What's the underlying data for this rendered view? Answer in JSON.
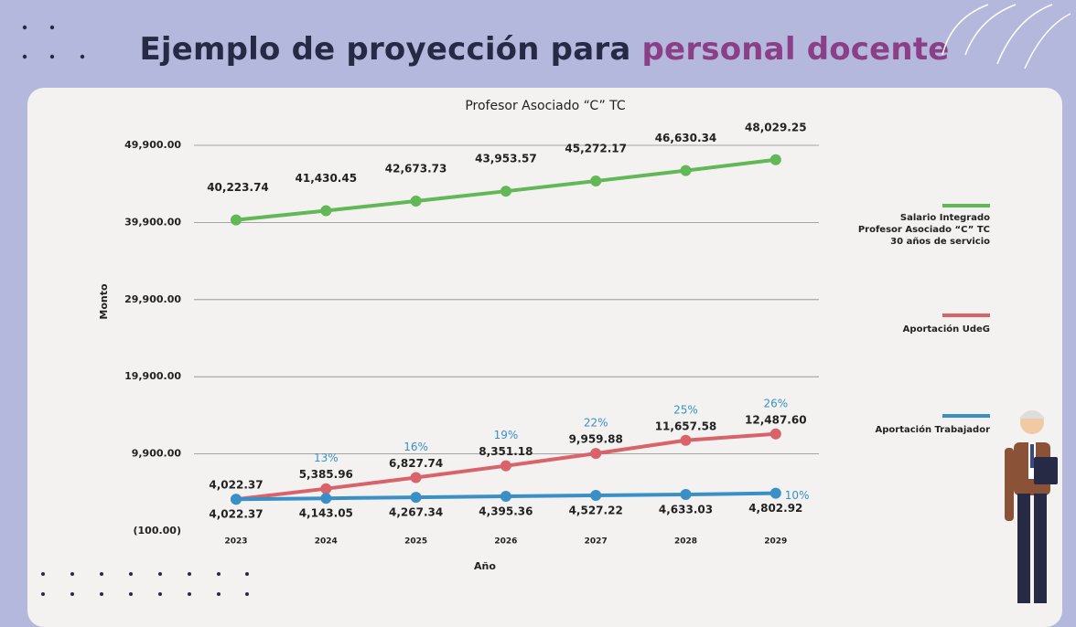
{
  "header": {
    "title": "Ejemplo de proyección para",
    "title_highlight": "personal docente"
  },
  "chart_data": {
    "type": "line",
    "title": "Profesor Asociado “C” TC",
    "x_label": "Año",
    "y_label": "Monto",
    "categories": [
      "2023",
      "2024",
      "2025",
      "2026",
      "2027",
      "2028",
      "2029"
    ],
    "ylim": [
      -100,
      49900
    ],
    "yticks": [
      {
        "value": -100,
        "label": "(100.00)"
      },
      {
        "value": 9900,
        "label": "9,900.00"
      },
      {
        "value": 19900,
        "label": "19,900.00"
      },
      {
        "value": 29900,
        "label": "29,900.00"
      },
      {
        "value": 39900,
        "label": "39,900.00"
      },
      {
        "value": 49900,
        "label": "49,900.00"
      }
    ],
    "grid": true,
    "series": [
      {
        "name": "Salario Integrado\nProfesor Asociado “C” TC\n30 años de servicio",
        "color": "#62b757",
        "values": [
          40223.74,
          41430.45,
          42673.73,
          43953.57,
          45272.17,
          46630.34,
          48029.25
        ],
        "value_labels": [
          "40,223.74",
          "41,430.45",
          "42,673.73",
          "43,953.57",
          "45,272.17",
          "46,630.34",
          "48,029.25"
        ]
      },
      {
        "name": "Aportación UdeG",
        "color": "#d8636a",
        "values": [
          4022.37,
          5385.96,
          6827.74,
          8351.18,
          9959.88,
          11657.58,
          12487.6
        ],
        "value_labels": [
          "4,022.37",
          "5,385.96",
          "6,827.74",
          "8,351.18",
          "9,959.88",
          "11,657.58",
          "12,487.60"
        ],
        "percent_labels": [
          null,
          "13%",
          "16%",
          "19%",
          "22%",
          "25%",
          "26%"
        ]
      },
      {
        "name": "Aportación Trabajador",
        "color": "#3a8fc6",
        "values": [
          4022.37,
          4143.05,
          4267.34,
          4395.36,
          4527.22,
          4633.03,
          4802.92
        ],
        "value_labels": [
          "4,022.37",
          "4,143.05",
          "4,267.34",
          "4,395.36",
          "4,527.22",
          "4,633.03",
          "4,802.92"
        ],
        "percent_labels": [
          null,
          null,
          null,
          null,
          null,
          null,
          "10%"
        ]
      }
    ]
  }
}
